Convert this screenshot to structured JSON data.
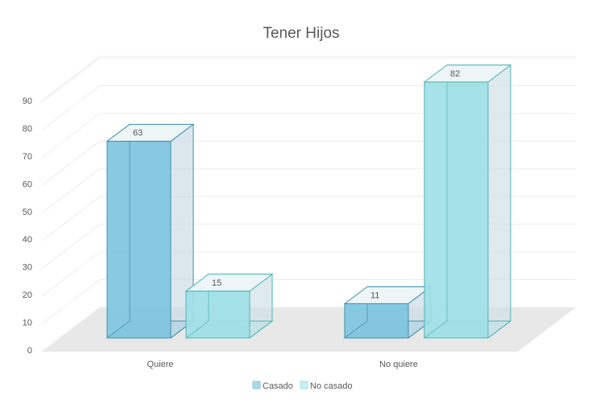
{
  "chart_data": {
    "type": "bar",
    "title": "Tener Hijos",
    "categories": [
      "Quiere",
      "No quiere"
    ],
    "series": [
      {
        "name": "Casado",
        "values": [
          63,
          11
        ],
        "color": "#7fc4df"
      },
      {
        "name": "No casado",
        "values": [
          15,
          82
        ],
        "color": "#9fdfe6"
      }
    ],
    "ylim": [
      0,
      90
    ],
    "yticks": [
      0,
      10,
      20,
      30,
      40,
      50,
      60,
      70,
      80,
      90
    ],
    "grid": true,
    "legend": "bottom",
    "style": "3d-clustered-column"
  }
}
